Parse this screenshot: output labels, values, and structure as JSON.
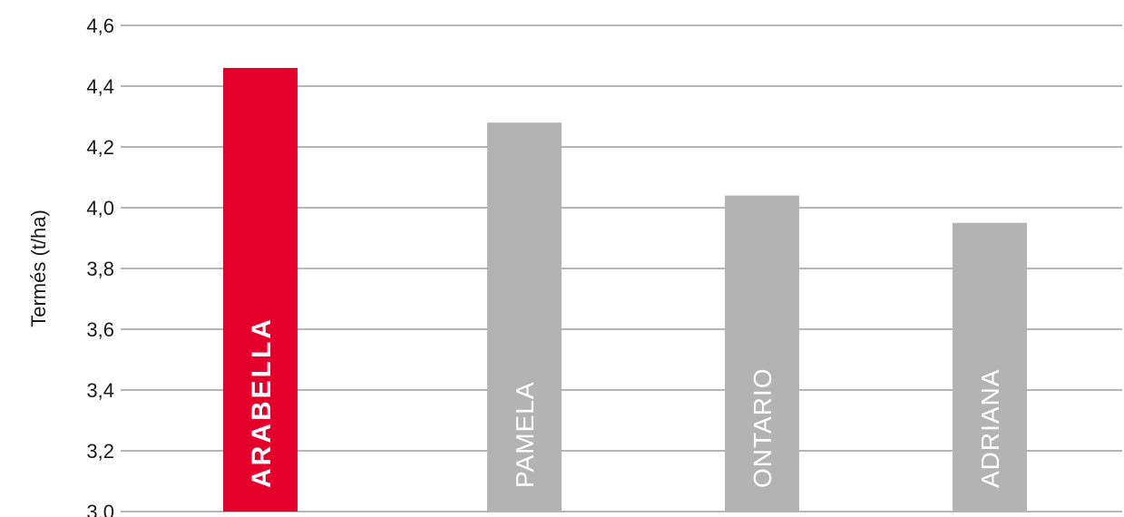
{
  "chart_data": {
    "type": "bar",
    "ylabel": "Termés (t/ha)",
    "ylim": [
      3.0,
      4.6
    ],
    "yticks": [
      "3,0",
      "3,2",
      "3,4",
      "3,6",
      "3,8",
      "4,0",
      "4,2",
      "4,4",
      "4,6"
    ],
    "grid": true,
    "categories": [
      "ARABELLA",
      "PAMELA",
      "ONTARIO",
      "ADRIANA"
    ],
    "values": [
      4.46,
      4.28,
      4.04,
      3.95
    ],
    "colors": [
      "#e4002b",
      "#b3b3b3",
      "#b3b3b3",
      "#b3b3b3"
    ]
  }
}
